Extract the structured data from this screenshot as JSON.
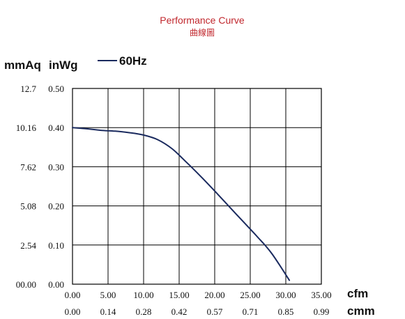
{
  "chart_data": {
    "type": "line",
    "title": "Performance Curve",
    "subtitle": "曲線圖",
    "y_units": [
      "mmAq",
      "inWg"
    ],
    "x_units": [
      "cfm",
      "cmm"
    ],
    "series": [
      {
        "name": "60Hz",
        "color": "#1a2a5e",
        "x": [
          0,
          2,
          4,
          6,
          8,
          10,
          12,
          14,
          16,
          18,
          20,
          22,
          24,
          26,
          28,
          30.5
        ],
        "y": [
          0.4,
          0.397,
          0.393,
          0.391,
          0.387,
          0.381,
          0.369,
          0.346,
          0.312,
          0.276,
          0.238,
          0.199,
          0.16,
          0.121,
          0.079,
          0.01
        ]
      }
    ],
    "xlim": [
      0,
      35
    ],
    "ylim": [
      0,
      0.5
    ],
    "x_ticks_cfm": [
      "0.00",
      "5.00",
      "10.00",
      "15.00",
      "20.00",
      "25.00",
      "30.00",
      "35.00"
    ],
    "x_ticks_cmm": [
      "0.00",
      "0.14",
      "0.28",
      "0.42",
      "0.57",
      "0.71",
      "0.85",
      "0.99"
    ],
    "y_ticks_inwg": [
      "0.00",
      "0.10",
      "0.20",
      "0.30",
      "0.40",
      "0.50"
    ],
    "y_ticks_mmaq": [
      "00.00",
      "2.54",
      "5.08",
      "7.62",
      "10.16",
      "12.7"
    ],
    "grid": true,
    "legend_position": "top-left"
  }
}
